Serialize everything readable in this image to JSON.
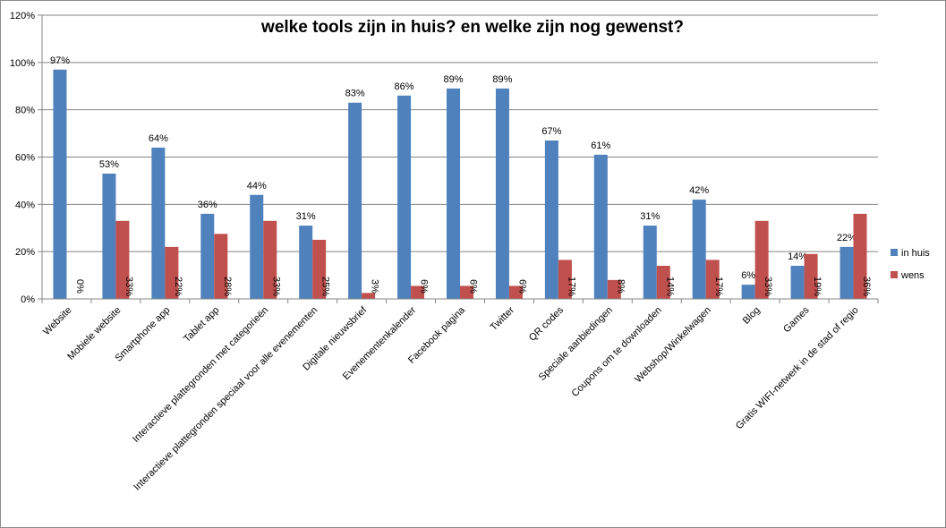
{
  "chart_data": {
    "type": "bar",
    "title": "welke tools zijn in huis? en welke zijn nog gewenst?",
    "categories": [
      "Website",
      "Mobiele website",
      "Smartphone app",
      "Tablet app",
      "Interactieve plattegronden met categorieën",
      "Interactieve plattegronden speciaal voor alle evenementen",
      "Digitale nieuwsbrief",
      "Evenementenkalender",
      "Facebook pagina",
      "Twitter",
      "QR codes",
      "Speciale aanbiedingen",
      "Coupons om te downloaden",
      "Webshop/Winkelwagen",
      "Blog",
      "Games",
      "Gratis WIFI-netwerk in de stad of regio"
    ],
    "series": [
      {
        "name": "in huis",
        "color": "#4f81bd",
        "values": [
          97,
          53,
          64,
          36,
          44,
          31,
          83,
          86,
          89,
          89,
          67,
          61,
          31,
          42,
          6,
          14,
          22
        ],
        "labels": [
          "97%",
          "53%",
          "64%",
          "36%",
          "44%",
          "31%",
          "83%",
          "86%",
          "89%",
          "89%",
          "67%",
          "61%",
          "31%",
          "42%",
          "6%",
          "14%",
          "22%"
        ]
      },
      {
        "name": "wens",
        "color": "#c0504d",
        "values": [
          0,
          33,
          22,
          27.5,
          33,
          25,
          2.5,
          5.5,
          5.5,
          5.5,
          16.5,
          8,
          14,
          16.5,
          33,
          19,
          36
        ],
        "labels": [
          "0%",
          "33%",
          "22%",
          "28%",
          "33%",
          "25%",
          "3%",
          "6%",
          "6%",
          "6%",
          "17%",
          "8%",
          "14%",
          "17%",
          "33%",
          "19%",
          "36%"
        ]
      }
    ],
    "yticks": [
      "0%",
      "20%",
      "40%",
      "60%",
      "80%",
      "100%",
      "120%"
    ],
    "ylim": [
      0,
      120
    ],
    "grid": true,
    "legend": "right"
  }
}
